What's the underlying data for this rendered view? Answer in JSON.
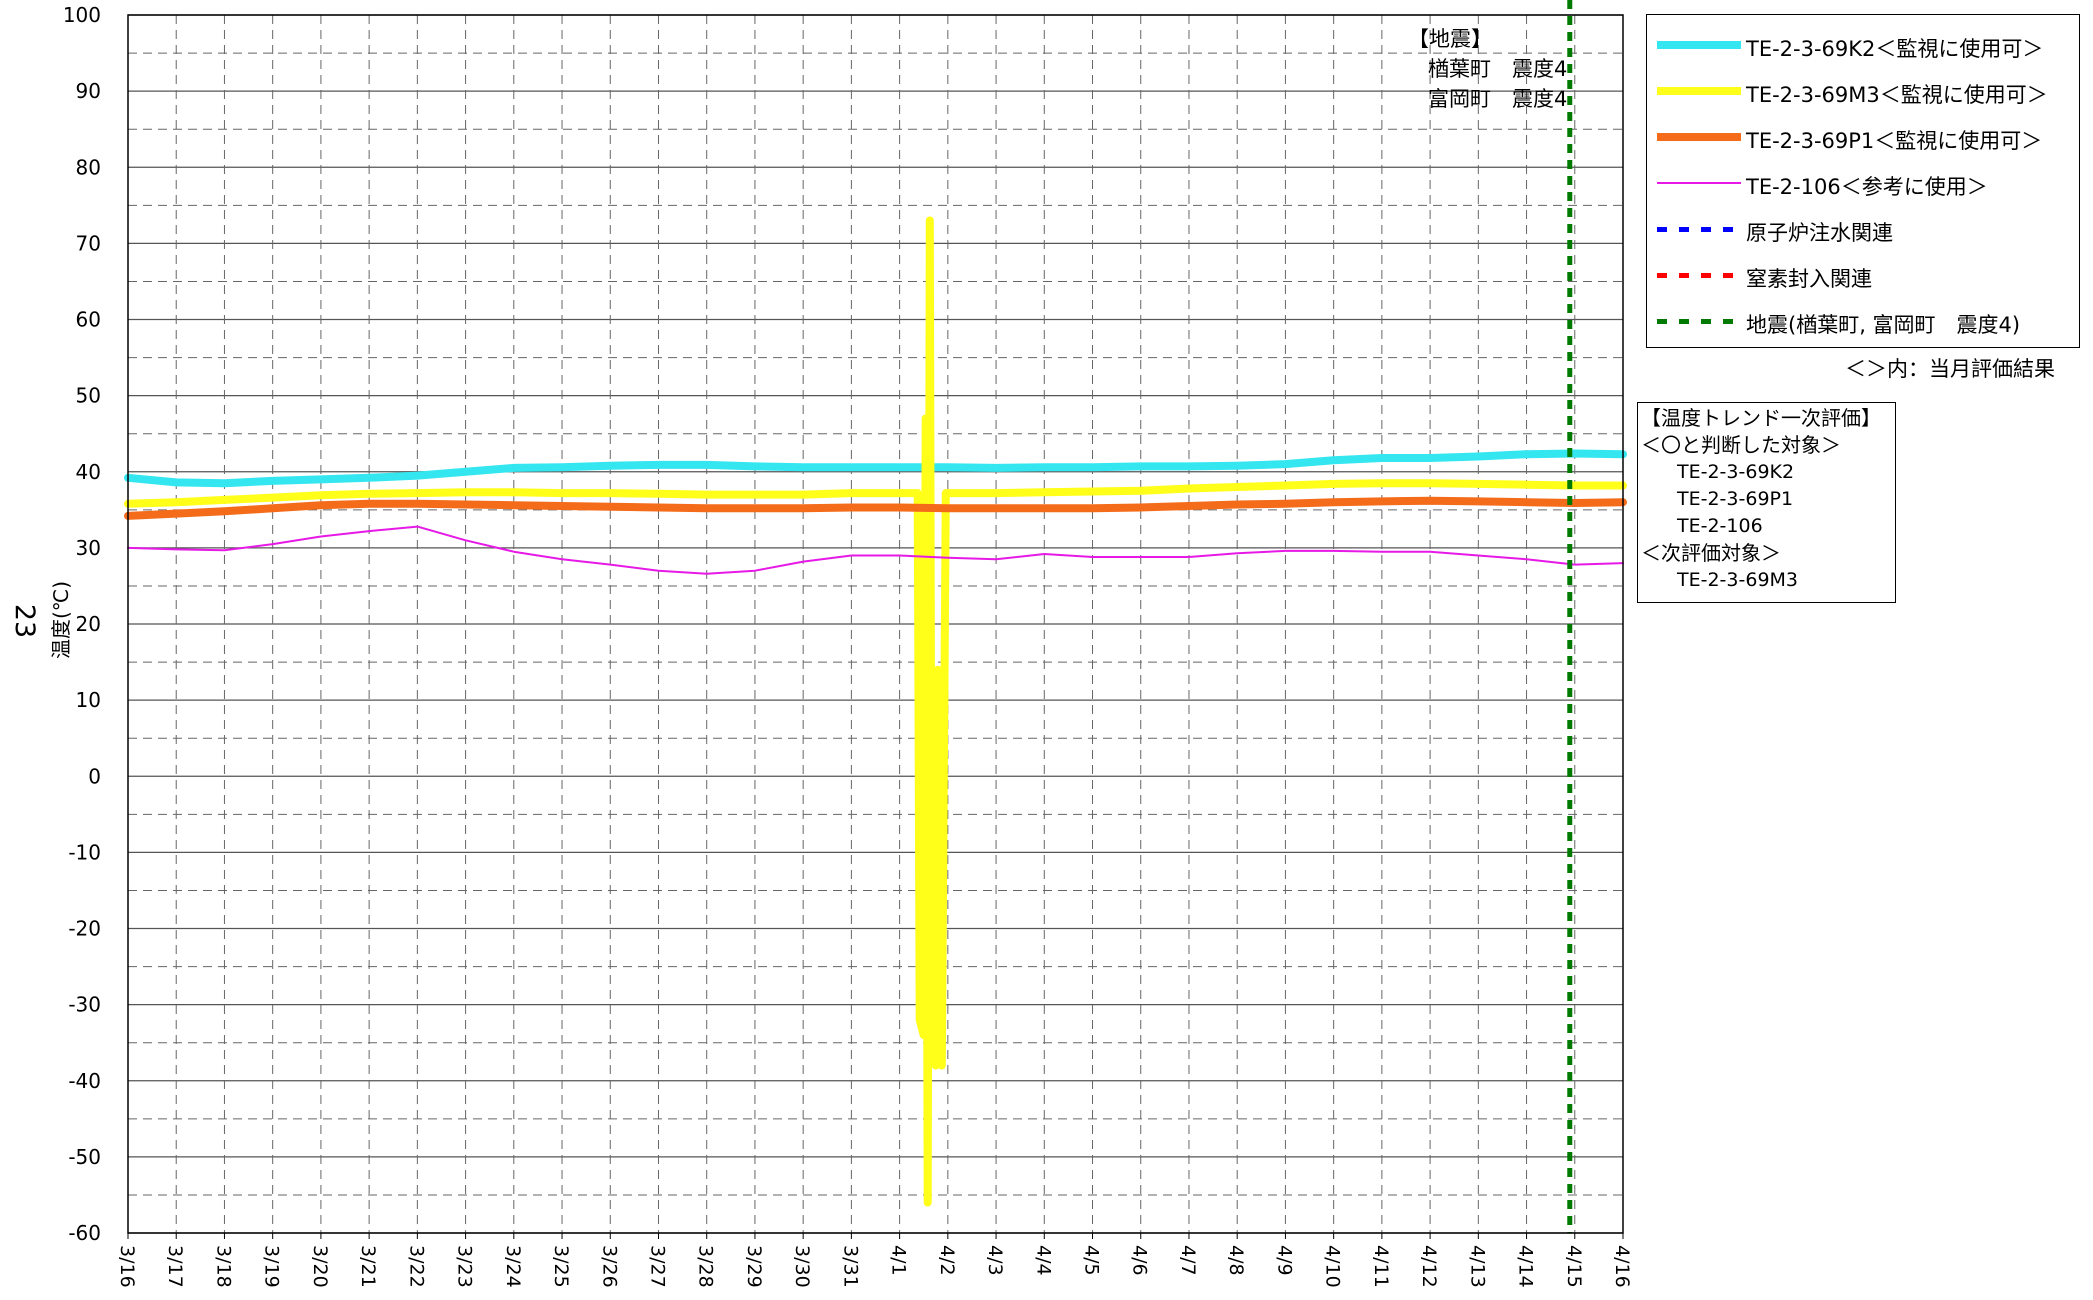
{
  "page_number": "23",
  "chart_data": {
    "type": "line",
    "ylabel": "温度(℃)",
    "ylim": [
      -60,
      100
    ],
    "yticks": [
      100,
      90,
      80,
      70,
      60,
      50,
      40,
      30,
      20,
      10,
      0,
      -10,
      -20,
      -30,
      -40,
      -50,
      -60
    ],
    "x_dates": [
      "3/16",
      "3/17",
      "3/18",
      "3/19",
      "3/20",
      "3/21",
      "3/22",
      "3/23",
      "3/24",
      "3/25",
      "3/26",
      "3/27",
      "3/28",
      "3/29",
      "3/30",
      "3/31",
      "4/1",
      "4/2",
      "4/3",
      "4/4",
      "4/5",
      "4/6",
      "4/7",
      "4/8",
      "4/9",
      "4/10",
      "4/11",
      "4/12",
      "4/13",
      "4/14",
      "4/15",
      "4/16"
    ],
    "grid": true,
    "series": [
      {
        "name": "TE-2-3-69K2＜監視に使用可＞",
        "color": "#33e6f0",
        "width": 8,
        "x": [
          "3/16",
          "3/17",
          "3/18",
          "3/19",
          "3/20",
          "3/21",
          "3/22",
          "3/23",
          "3/24",
          "3/25",
          "3/26",
          "3/27",
          "3/28",
          "3/29",
          "3/30",
          "3/31",
          "4/1",
          "4/2",
          "4/3",
          "4/4",
          "4/5",
          "4/6",
          "4/7",
          "4/8",
          "4/9",
          "4/10",
          "4/11",
          "4/12",
          "4/13",
          "4/14",
          "4/15",
          "4/16"
        ],
        "values": [
          39.2,
          38.6,
          38.5,
          38.8,
          39.0,
          39.2,
          39.5,
          40.0,
          40.5,
          40.6,
          40.8,
          40.9,
          40.9,
          40.7,
          40.6,
          40.6,
          40.6,
          40.6,
          40.5,
          40.6,
          40.6,
          40.7,
          40.7,
          40.8,
          41.0,
          41.5,
          41.8,
          41.8,
          42.0,
          42.3,
          42.4,
          42.3
        ]
      },
      {
        "name": "TE-2-3-69M3＜監視に使用可＞",
        "color": "#ffff1a",
        "width": 8,
        "x": [
          "3/16",
          "3/17",
          "3/18",
          "3/19",
          "3/20",
          "3/21",
          "3/22",
          "3/23",
          "3/24",
          "3/25",
          "3/26",
          "3/27",
          "3/28",
          "3/29",
          "3/30",
          "3/31",
          "4/1 08:00",
          "4/1 09:00",
          "4/1 10:00",
          "4/1 12:00",
          "4/1 13:00",
          "4/1 14:00",
          "4/1 15:00",
          "4/1 16:00",
          "4/1 17:00",
          "4/1 18:00",
          "4/1 19:00",
          "4/1 20:00",
          "4/1 21:00",
          "4/1 23:00",
          "4/2 01:00",
          "4/2 02:00",
          "4/2 03:00",
          "4/2 04:00",
          "4/2 05:00",
          "4/2 06:00",
          "4/2 07:00",
          "4/2 08:00",
          "4/2 09:00",
          "4/2 10:00",
          "4/3",
          "4/4",
          "4/5",
          "4/6",
          "4/7",
          "4/8",
          "4/9",
          "4/10",
          "4/11",
          "4/12",
          "4/13",
          "4/14",
          "4/15",
          "4/16"
        ],
        "values": [
          35.8,
          36.0,
          36.3,
          36.6,
          36.9,
          37.1,
          37.2,
          37.3,
          37.3,
          37.2,
          37.2,
          37.1,
          37.0,
          37.0,
          37.0,
          37.2,
          37.2,
          37.2,
          -32,
          -34,
          47,
          -56,
          73,
          -32,
          -20,
          -38,
          14,
          -20,
          -38,
          37.2,
          37.2,
          37.2,
          37.2,
          37.2,
          37.2,
          37.2,
          37.2,
          37.2,
          37.2,
          37.2,
          37.2,
          37.3,
          37.4,
          37.5,
          37.8,
          38.0,
          38.2,
          38.4,
          38.5,
          38.5,
          38.4,
          38.3,
          38.2,
          38.2
        ]
      },
      {
        "name": "TE-2-3-69P1＜監視に使用可＞",
        "color": "#f46c1a",
        "width": 8,
        "x": [
          "3/16",
          "3/17",
          "3/18",
          "3/19",
          "3/20",
          "3/21",
          "3/22",
          "3/23",
          "3/24",
          "3/25",
          "3/26",
          "3/27",
          "3/28",
          "3/29",
          "3/30",
          "3/31",
          "4/1",
          "4/2",
          "4/3",
          "4/4",
          "4/5",
          "4/6",
          "4/7",
          "4/8",
          "4/9",
          "4/10",
          "4/11",
          "4/12",
          "4/13",
          "4/14",
          "4/15",
          "4/16"
        ],
        "values": [
          34.2,
          34.5,
          34.8,
          35.2,
          35.6,
          35.8,
          35.8,
          35.7,
          35.6,
          35.5,
          35.4,
          35.3,
          35.2,
          35.2,
          35.2,
          35.3,
          35.3,
          35.2,
          35.2,
          35.2,
          35.2,
          35.3,
          35.5,
          35.7,
          35.8,
          36.0,
          36.1,
          36.2,
          36.1,
          36.0,
          35.9,
          36.0
        ]
      },
      {
        "name": "TE-2-106＜参考に使用＞",
        "color": "#e619e6",
        "width": 2,
        "x": [
          "3/16",
          "3/17",
          "3/18",
          "3/19",
          "3/20",
          "3/21",
          "3/22",
          "3/23",
          "3/24",
          "3/25",
          "3/26",
          "3/27",
          "3/28",
          "3/29",
          "3/30",
          "3/31",
          "4/1",
          "4/2",
          "4/3",
          "4/4",
          "4/5",
          "4/6",
          "4/7",
          "4/8",
          "4/9",
          "4/10",
          "4/11",
          "4/12",
          "4/13",
          "4/14",
          "4/15",
          "4/16"
        ],
        "values": [
          30.0,
          29.8,
          29.7,
          30.5,
          31.5,
          32.2,
          32.8,
          31.0,
          29.5,
          28.5,
          27.8,
          27.0,
          26.6,
          27.0,
          28.2,
          29.0,
          29.0,
          28.7,
          28.5,
          29.2,
          28.8,
          28.8,
          28.8,
          29.3,
          29.6,
          29.6,
          29.5,
          29.5,
          29.0,
          28.5,
          27.8,
          28.0
        ]
      }
    ],
    "vlines": [
      {
        "name": "地震(楢葉町, 富岡町 震度4)",
        "color": "#007a00",
        "date": "4/15"
      }
    ]
  },
  "legend": {
    "items": [
      {
        "label": "TE-2-3-69K2＜監視に使用可＞",
        "color": "#33e6f0",
        "style": "solid",
        "width": 8
      },
      {
        "label": "TE-2-3-69M3＜監視に使用可＞",
        "color": "#ffff1a",
        "style": "solid",
        "width": 8
      },
      {
        "label": "TE-2-3-69P1＜監視に使用可＞",
        "color": "#f46c1a",
        "style": "solid",
        "width": 8
      },
      {
        "label": "TE-2-106＜参考に使用＞",
        "color": "#e619e6",
        "style": "solid",
        "width": 2
      },
      {
        "label": "原子炉注水関連",
        "color": "#0000ff",
        "style": "dashed",
        "width": 5
      },
      {
        "label": "窒素封入関連",
        "color": "#ff0000",
        "style": "dashed",
        "width": 5
      },
      {
        "label": "地震(楢葉町, 富岡町　震度4)",
        "color": "#007a00",
        "style": "dashed",
        "width": 5
      }
    ],
    "note": "＜＞内：当月評価結果"
  },
  "quake_note": {
    "title": "【地震】",
    "line1": "楢葉町　震度4",
    "line2": "富岡町　震度4"
  },
  "eval_box": {
    "title": "【温度トレンド一次評価】",
    "ok_header": "＜〇と判断した対象＞",
    "ok_items": [
      "TE-2-3-69K2",
      "TE-2-3-69P1",
      "TE-2-106"
    ],
    "next_header": "＜次評価対象＞",
    "next_items": [
      "TE-2-3-69M3"
    ]
  }
}
